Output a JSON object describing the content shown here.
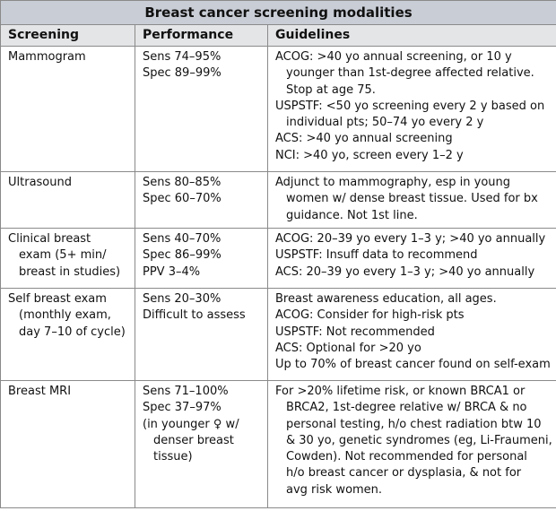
{
  "table": {
    "title": "Breast cancer screening modalities",
    "headers": [
      "Screening",
      "Performance",
      "Guidelines"
    ],
    "rows": [
      [
        [
          [
            "Mammogram"
          ]
        ],
        [
          [
            "Sens 74–95%"
          ],
          [
            "Spec 89–99%"
          ]
        ],
        [
          [
            "ACOG: >40 yo annual screening, or 10 y",
            "younger than 1st-degree affected relative.",
            "Stop at age 75."
          ],
          [
            "USPSTF: <50 yo screening every 2 y based on",
            "individual pts; 50–74 yo every 2 y"
          ],
          [
            "ACS: >40 yo annual screening"
          ],
          [
            "NCI: >40 yo, screen every 1–2 y"
          ]
        ]
      ],
      [
        [
          [
            "Ultrasound"
          ]
        ],
        [
          [
            "Sens 80–85%"
          ],
          [
            "Spec 60–70%"
          ]
        ],
        [
          [
            "Adjunct to mammography, esp in young",
            "women w/ dense breast tissue. Used for bx",
            "guidance. Not 1st line."
          ]
        ]
      ],
      [
        [
          [
            "Clinical breast",
            "exam (5+ min/",
            "breast in studies)"
          ]
        ],
        [
          [
            "Sens 40–70%"
          ],
          [
            "Spec 86–99%"
          ],
          [
            "PPV 3–4%"
          ]
        ],
        [
          [
            "ACOG: 20–39 yo every 1–3 y; >40 yo annually"
          ],
          [
            "USPSTF: Insuff data to recommend"
          ],
          [
            "ACS: 20–39 yo every 1–3 y; >40 yo annually"
          ]
        ]
      ],
      [
        [
          [
            "Self breast exam",
            "(monthly exam,",
            "day 7–10 of cycle)"
          ]
        ],
        [
          [
            "Sens 20–30%"
          ],
          [
            "Difficult to assess"
          ]
        ],
        [
          [
            "Breast awareness education, all ages."
          ],
          [
            "ACOG: Consider for high-risk pts"
          ],
          [
            "USPSTF: Not recommended"
          ],
          [
            "ACS: Optional for >20 yo"
          ],
          [
            "Up to 70% of breast cancer found on self-exam"
          ]
        ]
      ],
      [
        [
          [
            "Breast MRI"
          ]
        ],
        [
          [
            "Sens 71–100%"
          ],
          [
            "Spec 37–97%"
          ],
          [
            "(in younger ♀ w/",
            "denser breast",
            "tissue)"
          ]
        ],
        [
          [
            "For >20% lifetime risk, or known BRCA1 or",
            "BRCA2, 1st-degree relative w/ BRCA & no",
            "personal testing, h/o chest radiation btw 10",
            "& 30 yo, genetic syndromes (eg, Li-Fraumeni,",
            "Cowden). Not recommended for personal",
            "h/o breast cancer or dysplasia, & not for",
            "avg risk women."
          ]
        ]
      ]
    ]
  }
}
